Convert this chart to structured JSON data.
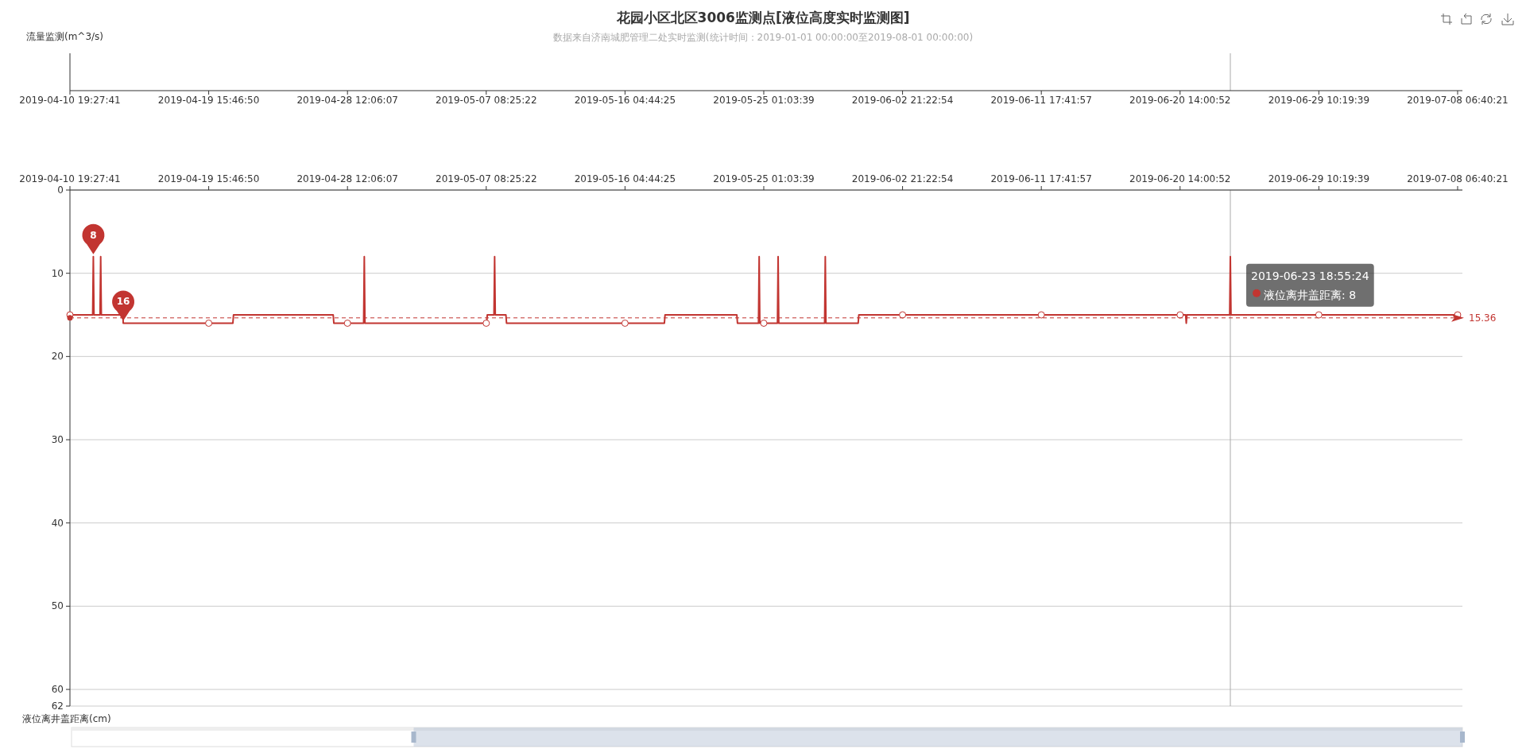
{
  "chart_data": {
    "type": "line",
    "title": "花园小区北区3006监测点[液位高度实时监测图]",
    "subtitle": "数据来自济南城肥管理二处实时监测(统计时间：2019-01-01 00:00:00至2019-08-01 00:00:00)",
    "ylabel": "液位离井盖距离(cm)",
    "xlim": [
      "2019-04-10T19:27:41",
      "2019-07-08T14:00"
    ],
    "xticks": [
      {
        "value": "2019-04-10T19:27:41",
        "label": "2019-04-10 19:27:41"
      },
      {
        "value": "2019-04-19T15:46:50",
        "label": "2019-04-19 15:46:50"
      },
      {
        "value": "2019-04-28T12:06:07",
        "label": "2019-04-28 12:06:07"
      },
      {
        "value": "2019-05-07T08:25:22",
        "label": "2019-05-07 08:25:22"
      },
      {
        "value": "2019-05-16T04:44:25",
        "label": "2019-05-16 04:44:25"
      },
      {
        "value": "2019-05-25T01:03:39",
        "label": "2019-05-25 01:03:39"
      },
      {
        "value": "2019-06-02T21:22:54",
        "label": "2019-06-02 21:22:54"
      },
      {
        "value": "2019-06-11T17:41:57",
        "label": "2019-06-11 17:41:57"
      },
      {
        "value": "2019-06-20T14:00:52",
        "label": "2019-06-20 14:00:52"
      },
      {
        "value": "2019-06-29T10:19:39",
        "label": "2019-06-29 10:19:39"
      },
      {
        "value": "2019-07-08T06:40:21",
        "label": "2019-07-08 06:40:21"
      }
    ],
    "x2lim": [
      "2019-04-10T19:27:41",
      "2019-07-08T14:00"
    ],
    "x2ticks": [
      {
        "value": "2019-04-10T19:27:41",
        "label": "2019-04-10 19:27:41"
      },
      {
        "value": "2019-04-19T15:46:50",
        "label": "2019-04-19 15:46:50"
      },
      {
        "value": "2019-04-28T12:06:07",
        "label": "2019-04-28 12:06:07"
      },
      {
        "value": "2019-05-07T08:25:22",
        "label": "2019-05-07 08:25:22"
      },
      {
        "value": "2019-05-16T04:44:25",
        "label": "2019-05-16 04:44:25"
      },
      {
        "value": "2019-05-25T01:03:39",
        "label": "2019-05-25 01:03:39"
      },
      {
        "value": "2019-06-02T21:22:54",
        "label": "2019-06-02 21:22:54"
      },
      {
        "value": "2019-06-11T17:41:57",
        "label": "2019-06-11 17:41:57"
      },
      {
        "value": "2019-06-20T14:00:52",
        "label": "2019-06-20 14:00:52"
      },
      {
        "value": "2019-06-29T10:19:39",
        "label": "2019-06-29 10:19:39"
      },
      {
        "value": "2019-07-08T06:40:21",
        "label": "2019-07-08 06:40:21"
      }
    ],
    "ylim": [
      62,
      0
    ],
    "yticks": [
      0,
      10,
      20,
      30,
      40,
      50,
      60,
      62
    ],
    "grid": "y",
    "series": [
      {
        "type": "line",
        "color": "#c23531",
        "x": [
          "2019-04-10T19:27:41",
          "2019-04-12T06:15",
          "2019-04-12T07:15",
          "2019-04-12T08:15",
          "2019-04-12T17:30",
          "2019-04-12T18:30",
          "2019-04-12T19:30",
          "2019-04-14T04:30",
          "2019-04-14T05:00",
          "2019-04-21T04:45",
          "2019-04-21T05:45",
          "2019-04-27T14:15",
          "2019-04-27T15:15",
          "2019-04-29T12:50",
          "2019-04-29T13:50",
          "2019-04-29T14:50",
          "2019-05-07T09:00",
          "2019-05-07T10:00",
          "2019-05-07T20:15",
          "2019-05-07T21:15",
          "2019-05-07T22:15",
          "2019-05-08T14:30",
          "2019-05-08T15:30",
          "2019-05-18T17:00",
          "2019-05-18T18:00",
          "2019-05-23T07:50",
          "2019-05-23T08:50",
          "2019-05-24T17:00",
          "2019-05-24T18:00",
          "2019-05-24T19:00",
          "2019-05-25T22:00",
          "2019-05-25T23:00",
          "2019-05-26T00:00",
          "2019-05-28T22:10",
          "2019-05-28T23:10",
          "2019-05-29T00:10",
          "2019-05-31T01:30",
          "2019-05-31T02:30",
          "2019-06-20T22:30",
          "2019-06-20T23:30",
          "2019-06-21T00:30",
          "2019-06-23T17:55",
          "2019-06-23T18:55:24",
          "2019-06-23T19:55",
          "2019-07-08T06:40:21"
        ],
        "values": [
          15,
          15,
          8,
          15,
          15,
          8,
          15,
          15,
          16,
          16,
          15,
          15,
          16,
          16,
          8,
          16,
          16,
          15,
          15,
          8,
          15,
          15,
          16,
          16,
          15,
          15,
          16,
          16,
          8,
          16,
          16,
          8,
          16,
          16,
          8,
          16,
          16,
          15,
          15,
          16,
          15,
          15,
          8,
          15,
          15
        ],
        "value_labels": [
          null,
          null,
          "8",
          null,
          null,
          null,
          null,
          null,
          "16",
          null,
          null,
          null,
          null,
          null,
          null,
          null,
          null,
          null,
          null,
          null,
          null,
          null,
          null,
          null,
          null,
          null,
          null,
          null,
          null,
          null,
          null,
          null,
          null,
          null,
          null,
          null,
          null,
          null,
          null,
          null,
          null,
          null,
          null,
          null,
          null
        ]
      },
      {
        "type": "scatter",
        "color": "#c23531",
        "marker": "circle",
        "x": [
          "2019-04-10T19:27:41",
          "2019-04-19T15:46:50",
          "2019-04-28T12:06:07",
          "2019-05-07T08:25:22",
          "2019-05-16T04:44:25",
          "2019-05-25T01:03:39",
          "2019-06-02T21:22:54",
          "2019-06-11T17:41:57",
          "2019-06-20T14:00:52",
          "2019-06-29T10:19:39",
          "2019-07-08T06:40:21"
        ],
        "values": [
          15,
          16,
          16,
          16,
          16,
          16,
          15,
          15,
          15,
          15,
          15
        ]
      }
    ],
    "ref_lines": [
      {
        "axis": "y",
        "value": 15.36,
        "label": "15.36",
        "color": "#c23531",
        "line_style": "dashed"
      },
      {
        "axis": "x",
        "value": "2019-06-23T18:55:24",
        "color": "#aaaaaa"
      }
    ],
    "annotations": [
      "流量监测(m^3/s)",
      {
        "text": "2019-06-23 18:55:24\n液位离井盖距离: 8",
        "x": "2019-06-23T18:55:24",
        "y": 8
      }
    ]
  }
}
